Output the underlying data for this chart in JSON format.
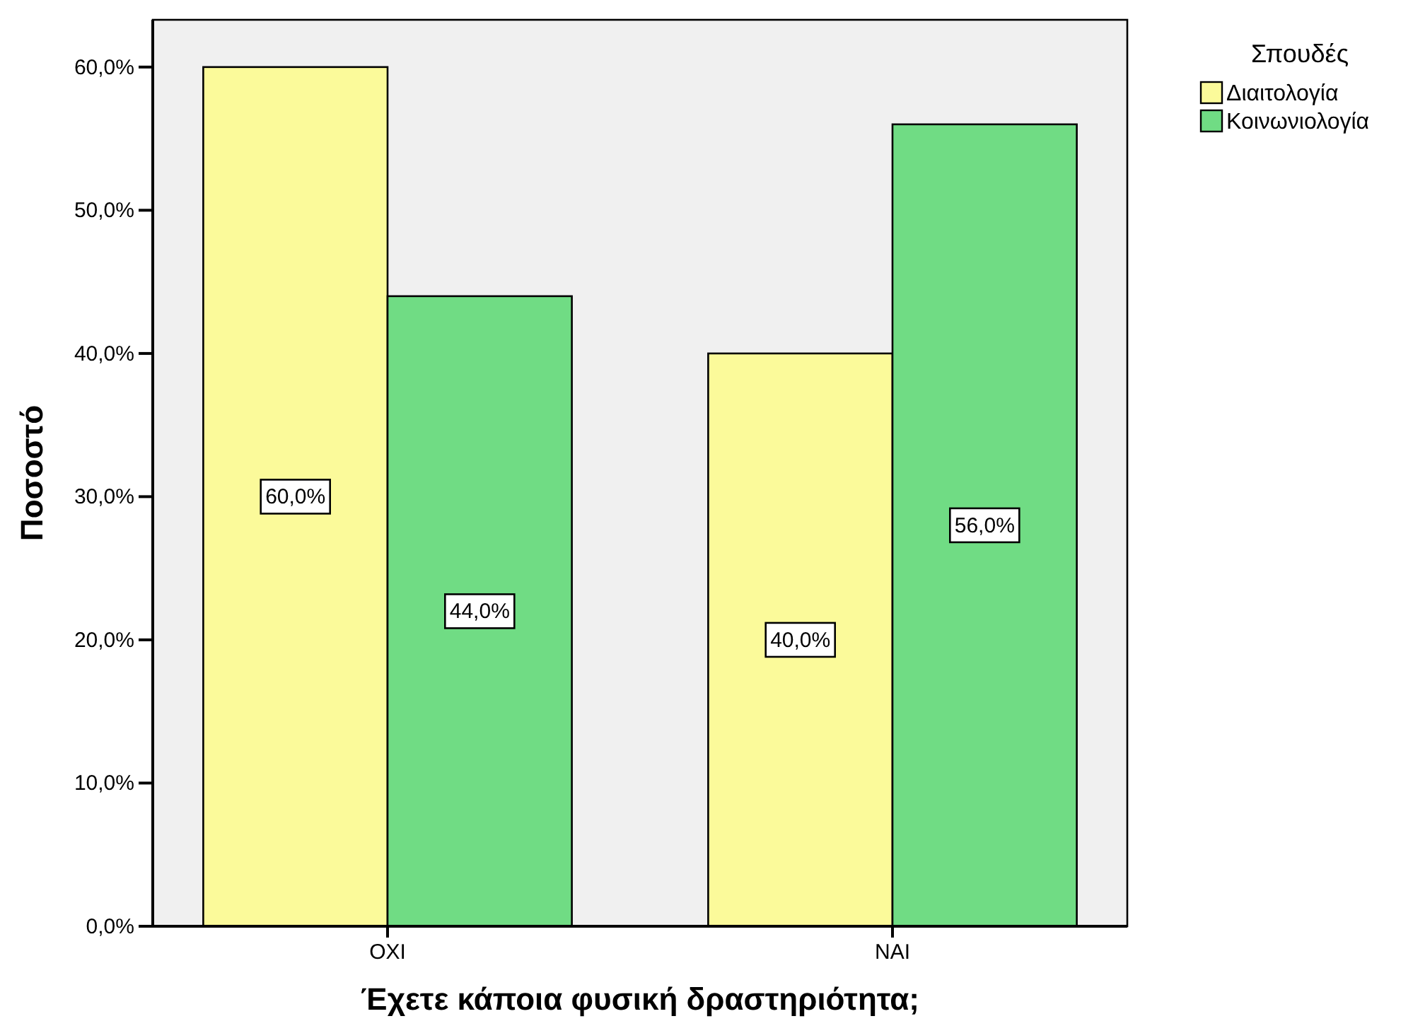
{
  "chart_data": {
    "type": "bar",
    "xlabel": "Έχετε κάποια φυσική δραστηριότητα;",
    "ylabel": "Ποσοστό",
    "legend_title": "Σπουδές",
    "categories": [
      "ΟΧΙ",
      "ΝΑΙ"
    ],
    "series": [
      {
        "name": "Διαιτολογία",
        "color": "#fbfa9a",
        "values": [
          60,
          40
        ],
        "value_labels": [
          "60,0%",
          "40,0%"
        ]
      },
      {
        "name": "Κοινωνιολογία",
        "color": "#70dc84",
        "values": [
          44,
          56
        ],
        "value_labels": [
          "44,0%",
          "56,0%"
        ]
      }
    ],
    "ylim": [
      0,
      63.3
    ],
    "yticks": [
      {
        "value": 0,
        "label": "0,0%"
      },
      {
        "value": 10,
        "label": "10,0%"
      },
      {
        "value": 20,
        "label": "20,0%"
      },
      {
        "value": 30,
        "label": "30,0%"
      },
      {
        "value": 40,
        "label": "40,0%"
      },
      {
        "value": 50,
        "label": "50,0%"
      },
      {
        "value": 60,
        "label": "60,0%"
      }
    ],
    "grid": false,
    "legend": "top right"
  }
}
